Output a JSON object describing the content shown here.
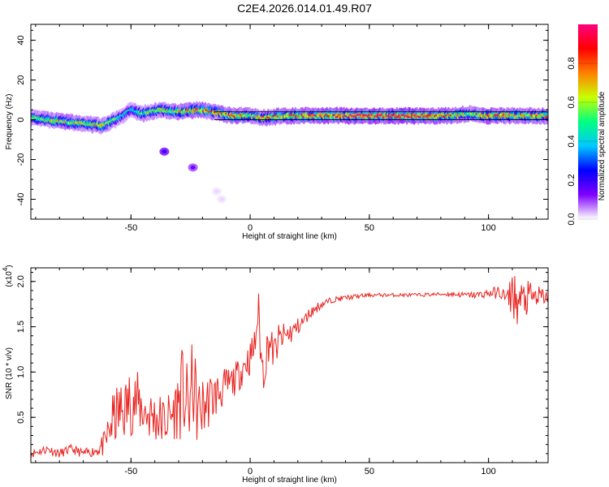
{
  "title": "C2E4.2026.014.01.49.R07",
  "chart_data": [
    {
      "type": "heatmap",
      "title": "",
      "xlabel": "Height of straight line (km)",
      "ylabel": "Frequency (Hz)",
      "xlim": [
        -92,
        125
      ],
      "ylim": [
        -50,
        48
      ],
      "xticks": [
        -50,
        0,
        50,
        100
      ],
      "xtick_labels": [
        "-50",
        "0",
        "50",
        "100"
      ],
      "yticks": [
        -40,
        -20,
        0,
        20,
        40
      ],
      "ytick_labels": [
        "-40",
        "-20",
        "0",
        "20",
        "40"
      ],
      "grid": false,
      "colorbar": {
        "label": "Normalized spectral amplitude",
        "range": [
          0,
          1
        ],
        "ticks": [
          0.0,
          0.2,
          0.4,
          0.6,
          0.8
        ],
        "tick_labels": [
          "0.0",
          "0.2",
          "0.4",
          "0.6",
          "0.8"
        ],
        "colors": [
          "#ffffff",
          "#8000ff",
          "#0000ff",
          "#00c8ff",
          "#00ff80",
          "#c8ff00",
          "#ff8000",
          "#ff0000",
          "#ff0080"
        ]
      },
      "ridge": [
        {
          "x": -92,
          "f": 1,
          "amp": 0.55
        },
        {
          "x": -85,
          "f": 0,
          "amp": 0.6
        },
        {
          "x": -78,
          "f": -1,
          "amp": 0.65
        },
        {
          "x": -70,
          "f": -2,
          "amp": 0.6
        },
        {
          "x": -62,
          "f": -3,
          "amp": 0.7
        },
        {
          "x": -55,
          "f": 1,
          "amp": 0.45
        },
        {
          "x": -50,
          "f": 5,
          "amp": 0.4
        },
        {
          "x": -45,
          "f": 3,
          "amp": 0.55
        },
        {
          "x": -38,
          "f": 5,
          "amp": 0.6
        },
        {
          "x": -30,
          "f": 4,
          "amp": 0.65
        },
        {
          "x": -22,
          "f": 5,
          "amp": 0.8
        },
        {
          "x": -15,
          "f": 4,
          "amp": 0.7
        },
        {
          "x": -8,
          "f": 2,
          "amp": 0.8
        },
        {
          "x": 0,
          "f": 2,
          "amp": 0.6
        },
        {
          "x": 5,
          "f": 1,
          "amp": 0.7
        },
        {
          "x": 15,
          "f": 2,
          "amp": 0.75
        },
        {
          "x": 30,
          "f": 2,
          "amp": 0.8
        },
        {
          "x": 50,
          "f": 2,
          "amp": 0.9
        },
        {
          "x": 70,
          "f": 2,
          "amp": 0.95
        },
        {
          "x": 85,
          "f": 2,
          "amp": 0.7
        },
        {
          "x": 92,
          "f": 3,
          "amp": 0.6
        },
        {
          "x": 100,
          "f": 2,
          "amp": 0.8
        },
        {
          "x": 110,
          "f": 2,
          "amp": 0.75
        },
        {
          "x": 125,
          "f": 2,
          "amp": 0.7
        }
      ],
      "blobs": [
        {
          "x": -36,
          "f": -16,
          "amp": 0.2
        },
        {
          "x": -24,
          "f": -24,
          "amp": 0.15
        },
        {
          "x": -14,
          "f": -36,
          "amp": 0.02
        },
        {
          "x": -12,
          "f": -40,
          "amp": 0.02
        }
      ]
    },
    {
      "type": "line",
      "title": "",
      "xlabel": "Height of straight line (km)",
      "ylabel": "SNR (10 * v/v)",
      "scale_label": "(x10",
      "scale_exp": "4",
      "xlim": [
        -92,
        125
      ],
      "ylim": [
        0,
        2.15
      ],
      "xticks": [
        -50,
        0,
        50,
        100
      ],
      "xtick_labels": [
        "-50",
        "0",
        "50",
        "100"
      ],
      "yticks": [
        0.5,
        1.0,
        1.5,
        2.0
      ],
      "ytick_labels": [
        "0.5",
        "1.0",
        "1.5",
        "2.0"
      ],
      "grid": false,
      "series": [
        {
          "color": "#e8231f",
          "x": [
            -92,
            -85,
            -80,
            -75,
            -70,
            -65,
            -61,
            -58,
            -55,
            -52,
            -50,
            -47,
            -44,
            -40,
            -36,
            -32,
            -28,
            -26,
            -24,
            -22,
            -20,
            -17,
            -14,
            -10,
            -7,
            -4,
            -2,
            0,
            2,
            3.5,
            5,
            8,
            10,
            12,
            15,
            18,
            20,
            22,
            25,
            30,
            35,
            40,
            50,
            60,
            70,
            80,
            85,
            90,
            95,
            100,
            105,
            108,
            110,
            112,
            115,
            118,
            121,
            125
          ],
          "y": [
            0.1,
            0.15,
            0.1,
            0.15,
            0.1,
            0.13,
            0.2,
            0.45,
            0.55,
            0.6,
            0.7,
            0.65,
            0.55,
            0.5,
            0.45,
            0.55,
            0.8,
            0.55,
            0.9,
            0.55,
            0.6,
            0.7,
            0.75,
            0.85,
            0.9,
            1.0,
            1.1,
            1.15,
            1.3,
            1.7,
            1.0,
            1.35,
            1.2,
            1.35,
            1.4,
            1.45,
            1.5,
            1.55,
            1.65,
            1.75,
            1.8,
            1.82,
            1.85,
            1.85,
            1.85,
            1.86,
            1.86,
            1.85,
            1.85,
            1.87,
            1.88,
            1.8,
            1.9,
            1.75,
            1.8,
            1.82,
            1.83,
            1.83
          ],
          "jitter": [
            0.05,
            0.05,
            0.05,
            0.05,
            0.05,
            0.06,
            0.15,
            0.3,
            0.35,
            0.35,
            0.4,
            0.35,
            0.3,
            0.3,
            0.3,
            0.3,
            0.55,
            0.45,
            0.5,
            0.4,
            0.35,
            0.3,
            0.25,
            0.2,
            0.18,
            0.18,
            0.18,
            0.2,
            0.2,
            0.2,
            0.35,
            0.2,
            0.2,
            0.18,
            0.15,
            0.12,
            0.1,
            0.08,
            0.06,
            0.05,
            0.03,
            0.03,
            0.02,
            0.02,
            0.02,
            0.02,
            0.03,
            0.03,
            0.04,
            0.05,
            0.08,
            0.1,
            0.3,
            0.25,
            0.22,
            0.18,
            0.12,
            0.08
          ]
        }
      ]
    }
  ]
}
